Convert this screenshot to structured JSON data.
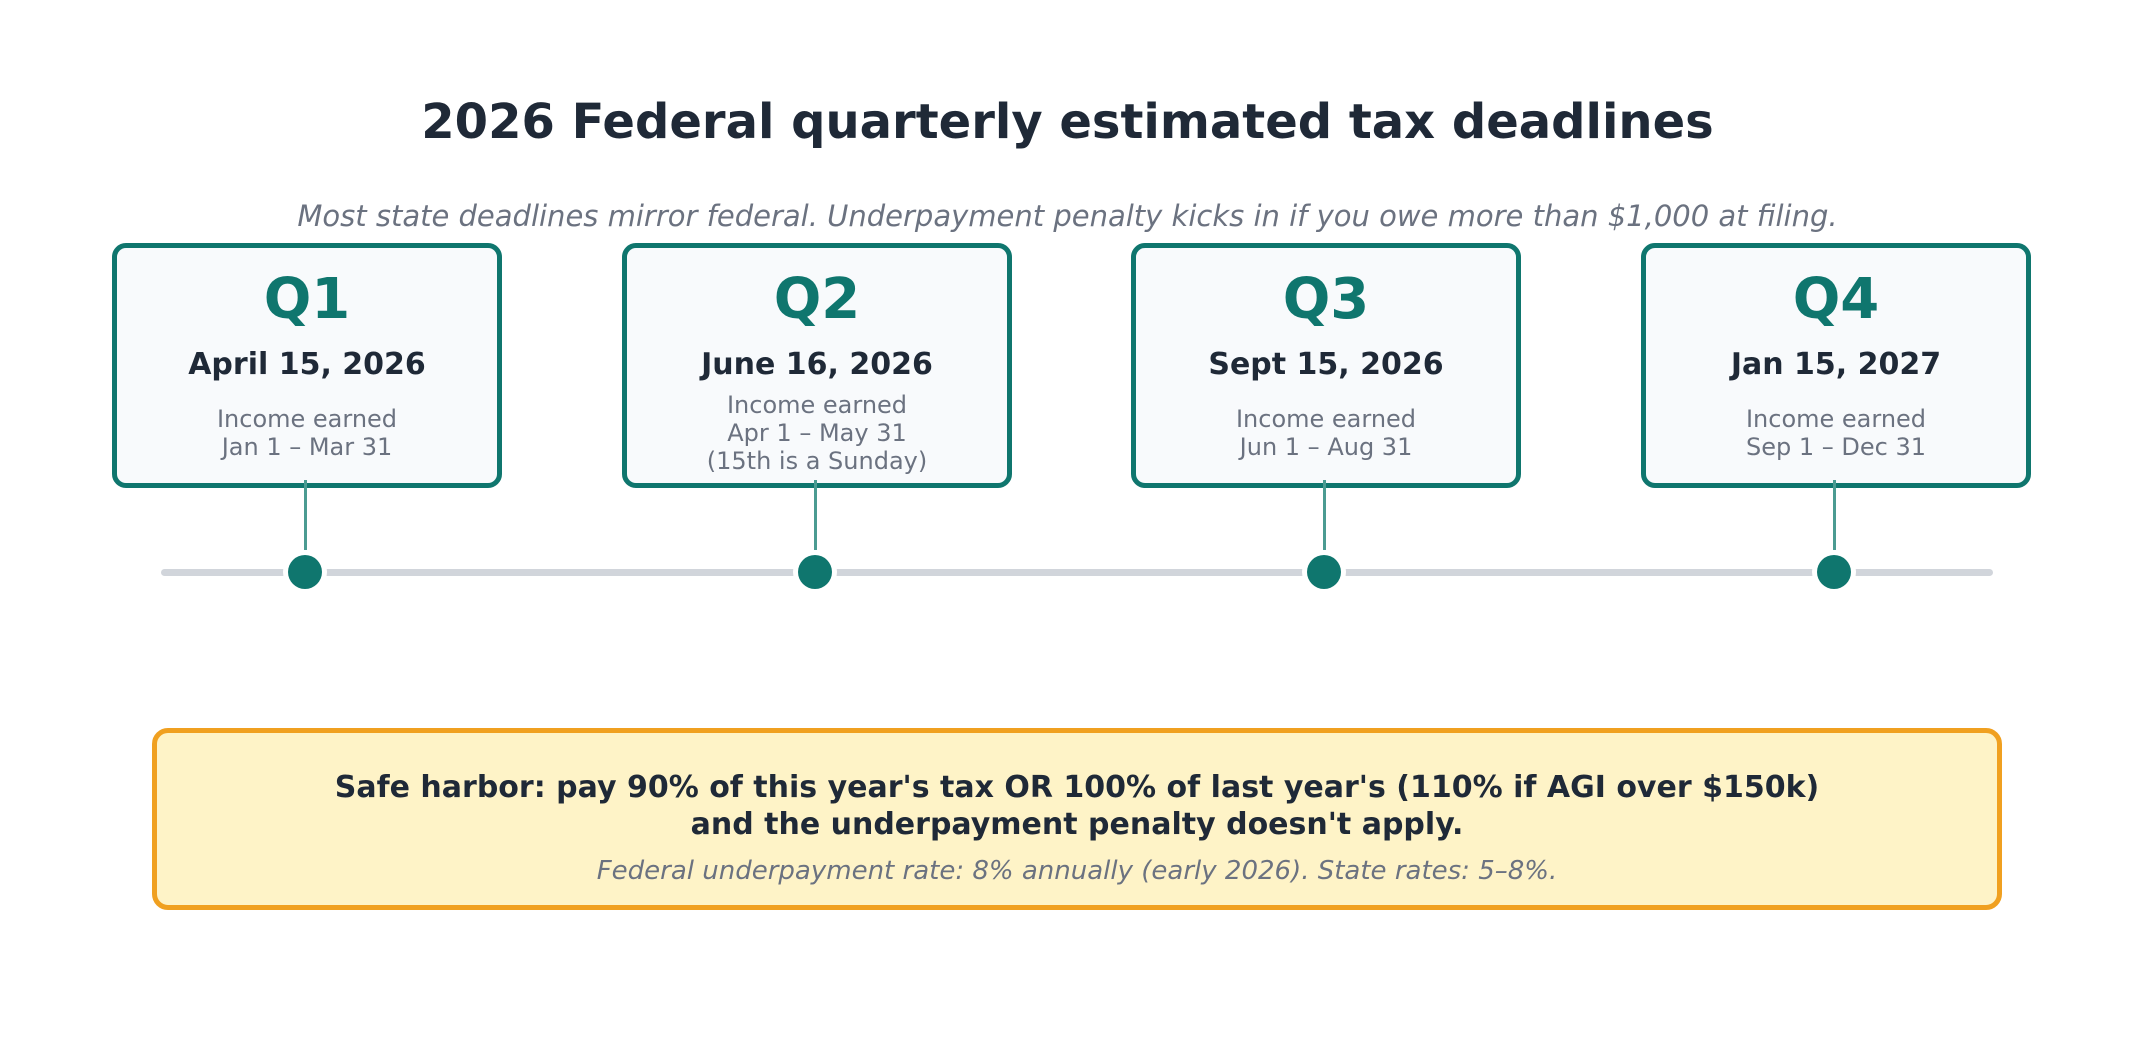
{
  "header": {
    "title": "2026 Federal quarterly estimated tax deadlines",
    "subtitle": "Most state deadlines mirror federal. Underpayment penalty kicks in if you owe more than $1,000 at filing."
  },
  "quarters": [
    {
      "label": "Q1",
      "date": "April 15, 2026",
      "note": "Income earned\nJan 1 – Mar 31"
    },
    {
      "label": "Q2",
      "date": "June 16, 2026",
      "note": "Income earned\nApr 1 – May 31\n(15th is a Sunday)"
    },
    {
      "label": "Q3",
      "date": "Sept 15, 2026",
      "note": "Income earned\nJun 1 – Aug 31"
    },
    {
      "label": "Q4",
      "date": "Jan 15, 2027",
      "note": "Income earned\nSep 1 – Dec 31"
    }
  ],
  "safe_harbor": {
    "main": "Safe harbor: pay 90% of this year's tax OR 100% of last year's (110% if AGI over $150k)\nand the underpayment penalty doesn't apply.",
    "sub": "Federal underpayment rate: 8% annually (early 2026). State rates: 5–8%."
  },
  "colors": {
    "accent": "#0f766e",
    "text": "#1f2937",
    "muted": "#6b7280",
    "card_bg": "#f8fafc",
    "axis": "#d1d5db",
    "callout_bg": "#fef3c7",
    "callout_border": "#f0a020"
  }
}
